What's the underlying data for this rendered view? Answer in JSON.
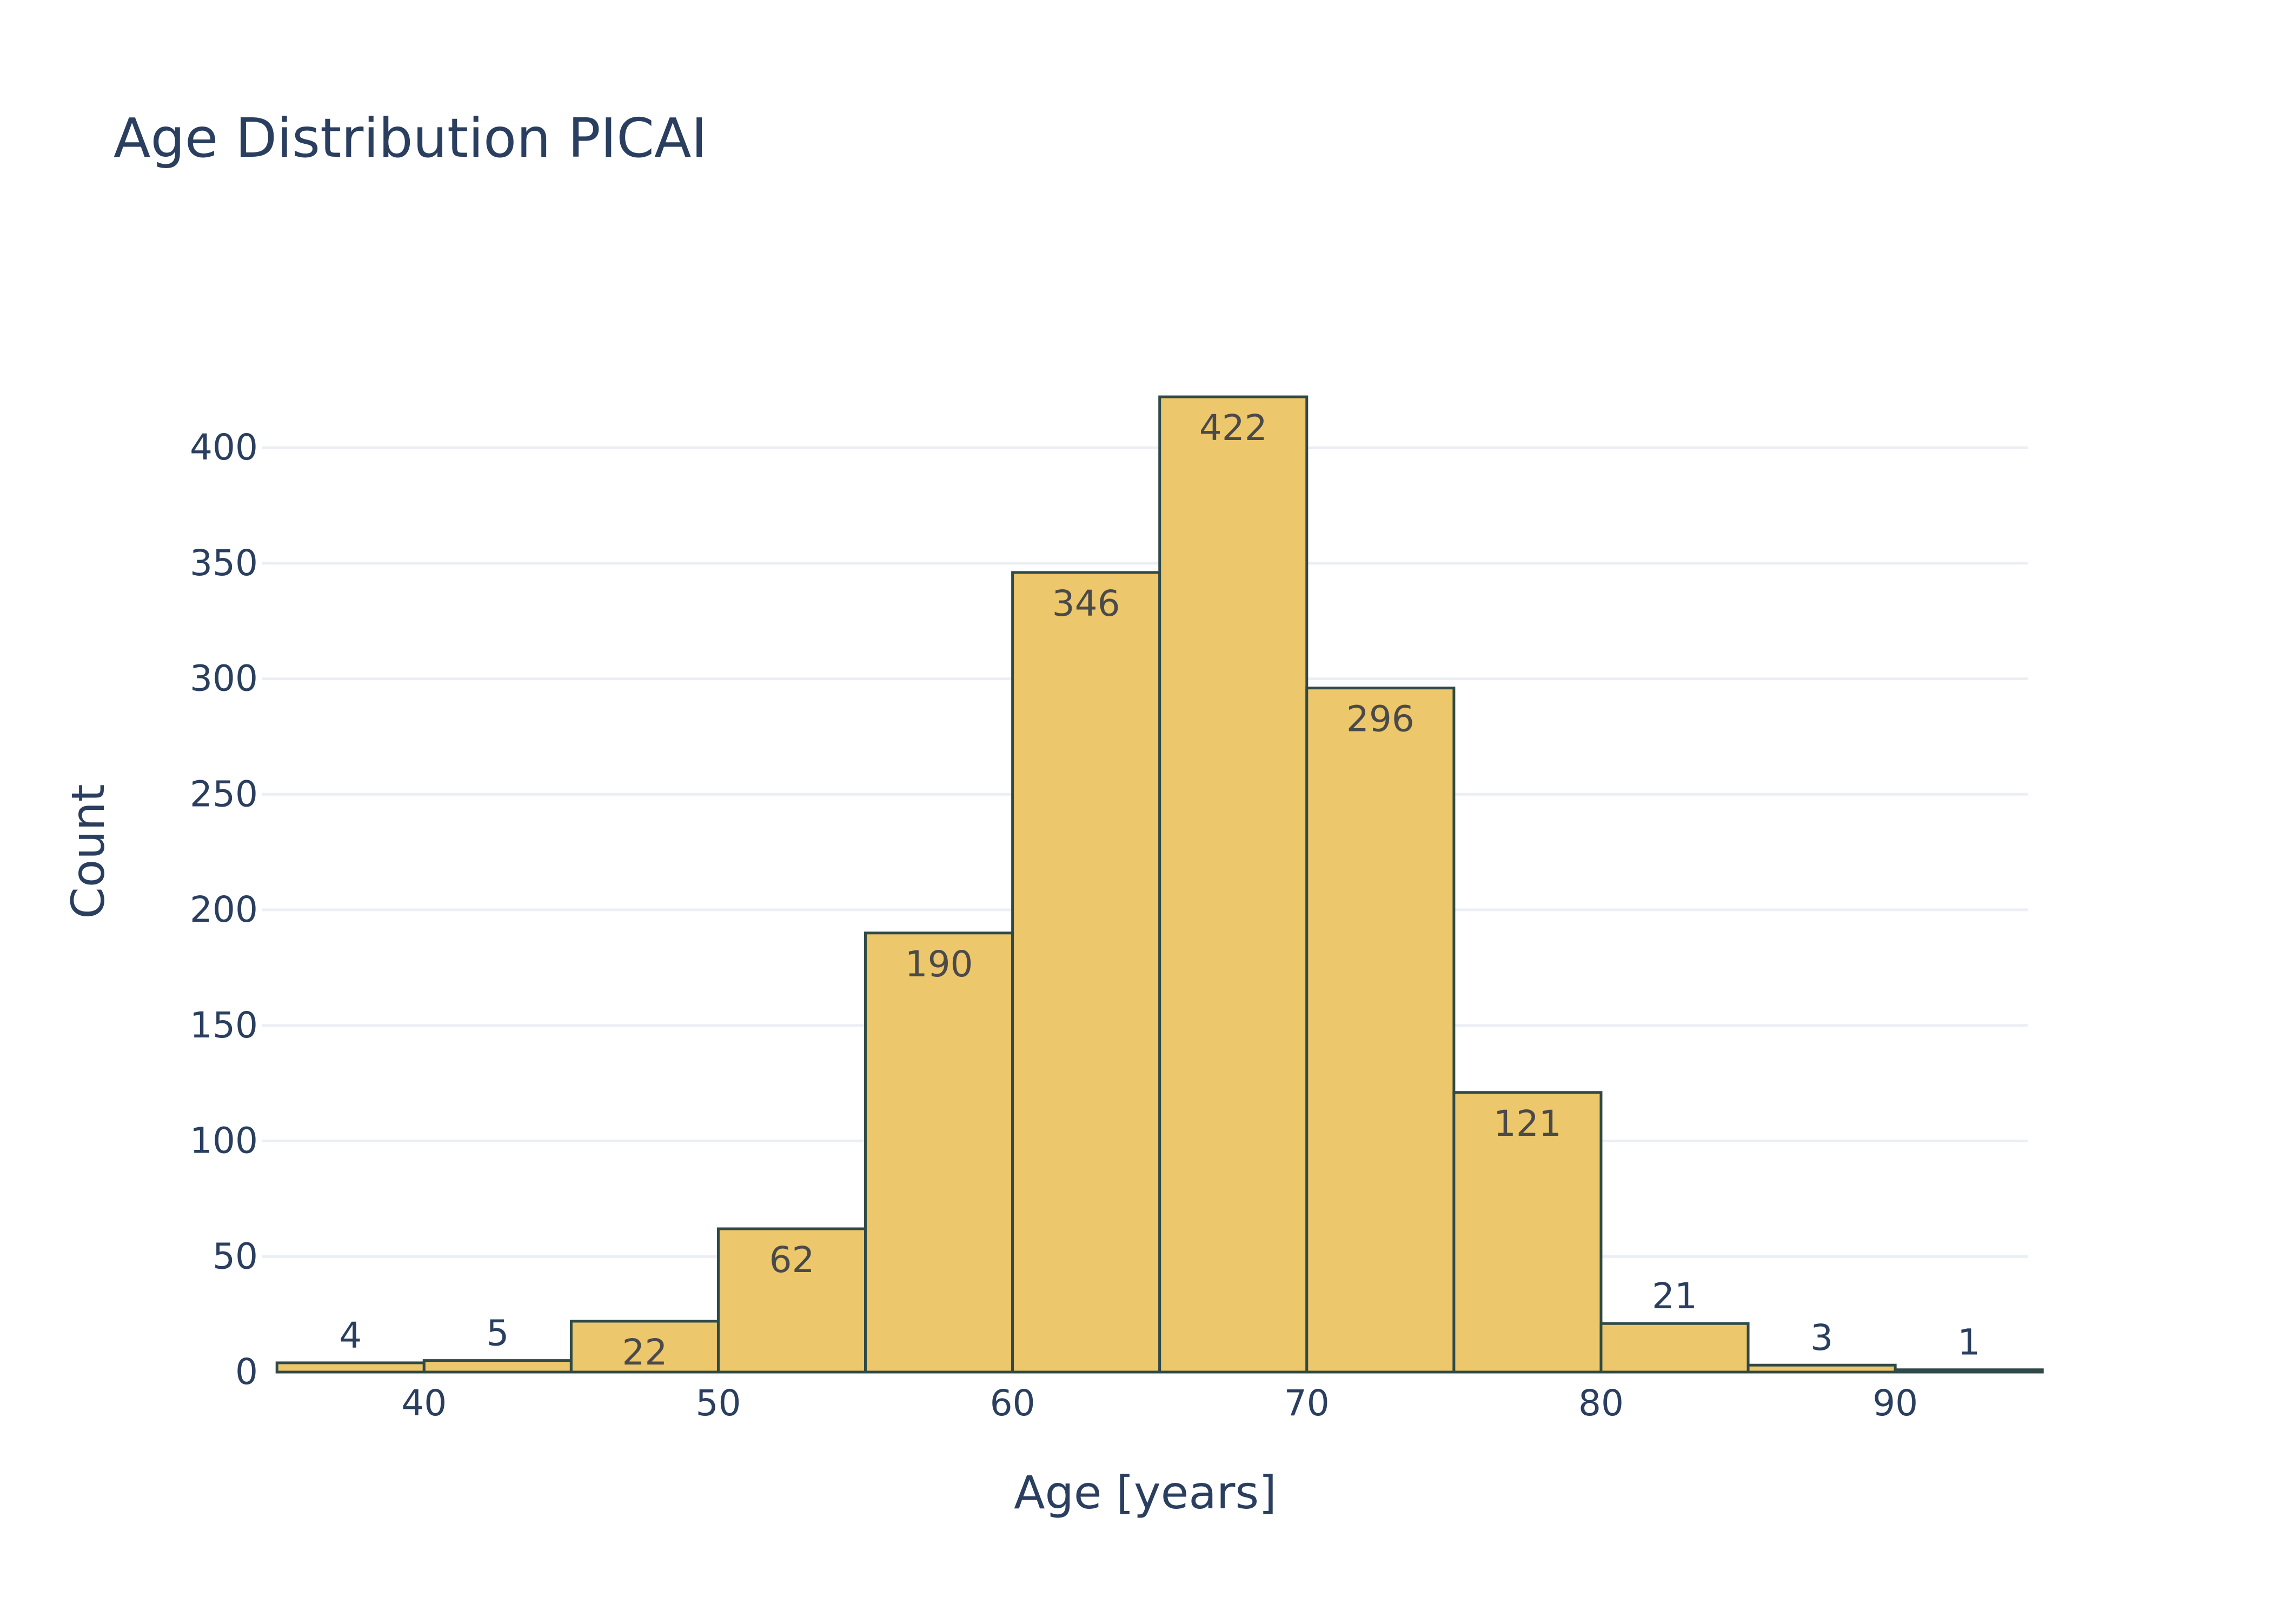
{
  "chart_data": {
    "type": "bar",
    "title": "Age Distribution PICAI",
    "xlabel": "Age [years]",
    "ylabel": "Count",
    "bin_width": 5,
    "bins": [
      {
        "start": 35,
        "end": 40,
        "value": 4
      },
      {
        "start": 40,
        "end": 45,
        "value": 5
      },
      {
        "start": 45,
        "end": 50,
        "value": 22
      },
      {
        "start": 50,
        "end": 55,
        "value": 62
      },
      {
        "start": 55,
        "end": 60,
        "value": 190
      },
      {
        "start": 60,
        "end": 65,
        "value": 346
      },
      {
        "start": 65,
        "end": 70,
        "value": 422
      },
      {
        "start": 70,
        "end": 75,
        "value": 296
      },
      {
        "start": 75,
        "end": 80,
        "value": 121
      },
      {
        "start": 80,
        "end": 85,
        "value": 21
      },
      {
        "start": 85,
        "end": 90,
        "value": 3
      },
      {
        "start": 90,
        "end": 95,
        "value": 1
      }
    ],
    "xlim": [
      34.5,
      94.5
    ],
    "ylim": [
      0,
      444
    ],
    "xticks": [
      40,
      50,
      60,
      70,
      80,
      90
    ],
    "yticks": [
      0,
      50,
      100,
      150,
      200,
      250,
      300,
      350,
      400
    ],
    "grid": "horizontal",
    "colors": {
      "bar_fill": "#EDC76B",
      "bar_outline": "#2F4A48",
      "grid": "#EBEEF4",
      "text": "#2A3F5F",
      "label_inside": "#4A4A4A"
    }
  }
}
